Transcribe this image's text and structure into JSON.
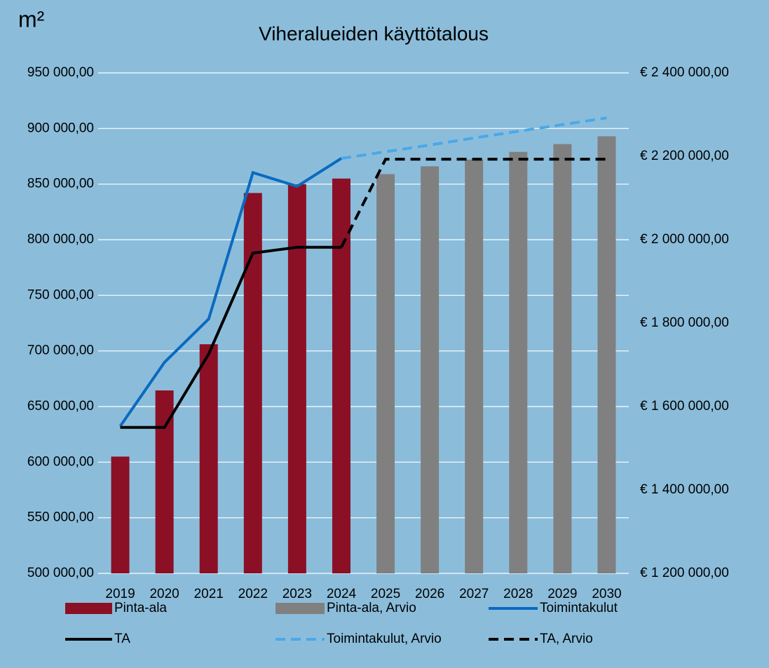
{
  "chart_data": {
    "type": "bar",
    "title": "Viheralueiden käyttötalous",
    "y_label": "m²",
    "categories": [
      "2019",
      "2020",
      "2021",
      "2022",
      "2023",
      "2024",
      "2025",
      "2026",
      "2027",
      "2028",
      "2029",
      "2030"
    ],
    "ylim": [
      500000,
      950000
    ],
    "yticks": [
      {
        "value": 500000,
        "label": "500 000,00"
      },
      {
        "value": 550000,
        "label": "550 000,00"
      },
      {
        "value": 600000,
        "label": "600 000,00"
      },
      {
        "value": 650000,
        "label": "650 000,00"
      },
      {
        "value": 700000,
        "label": "700 000,00"
      },
      {
        "value": 750000,
        "label": "750 000,00"
      },
      {
        "value": 800000,
        "label": "800 000,00"
      },
      {
        "value": 850000,
        "label": "850 000,00"
      },
      {
        "value": 900000,
        "label": "900 000,00"
      },
      {
        "value": 950000,
        "label": "950 000,00"
      }
    ],
    "y2lim": [
      1200000,
      2400000
    ],
    "y2ticks": [
      {
        "value": 1200000,
        "label": "€ 1 200 000,00"
      },
      {
        "value": 1400000,
        "label": "€ 1 400 000,00"
      },
      {
        "value": 1600000,
        "label": "€ 1 600 000,00"
      },
      {
        "value": 1800000,
        "label": "€ 1 800 000,00"
      },
      {
        "value": 2000000,
        "label": "€ 2 000 000,00"
      },
      {
        "value": 2200000,
        "label": "€ 2 200 000,00"
      },
      {
        "value": 2400000,
        "label": "€ 2 400 000,00"
      }
    ],
    "grid": true,
    "legend": "bottom",
    "series": [
      {
        "name": "Pinta-ala",
        "type": "bar",
        "color": "#8b1026",
        "values": [
          605000,
          664500,
          706000,
          842000,
          850000,
          855000,
          null,
          null,
          null,
          null,
          null,
          null
        ]
      },
      {
        "name": "Pinta-ala, Arvio",
        "type": "bar",
        "color": "#808080",
        "values": [
          null,
          null,
          null,
          null,
          null,
          null,
          859000,
          866000,
          872000,
          879000,
          886000,
          893000
        ]
      },
      {
        "name": "Toimintakulut",
        "type": "line",
        "axis": "y2",
        "color": "#0a6abf",
        "dashed": false,
        "values": [
          1553000,
          1706000,
          1810000,
          2161000,
          2128000,
          2195000,
          null,
          null,
          null,
          null,
          null,
          null
        ]
      },
      {
        "name": "TA",
        "type": "line",
        "axis": "y2",
        "color": "#000000",
        "dashed": false,
        "values": [
          1550000,
          1550000,
          1726000,
          1968000,
          1982000,
          1982000,
          null,
          null,
          null,
          null,
          null,
          null
        ]
      },
      {
        "name": "Toimintakulut, Arvio",
        "type": "line",
        "axis": "y2",
        "color": "#4aa8e8",
        "dashed": true,
        "values": [
          null,
          null,
          null,
          null,
          null,
          2195000,
          2211000,
          2227000,
          2244000,
          2260000,
          2276000,
          2292000
        ]
      },
      {
        "name": "TA, Arvio",
        "type": "line",
        "axis": "y2",
        "color": "#000000",
        "dashed": true,
        "values": [
          null,
          null,
          null,
          null,
          null,
          1982000,
          2193000,
          2193000,
          2193000,
          2193000,
          2193000,
          2193000
        ]
      }
    ]
  }
}
